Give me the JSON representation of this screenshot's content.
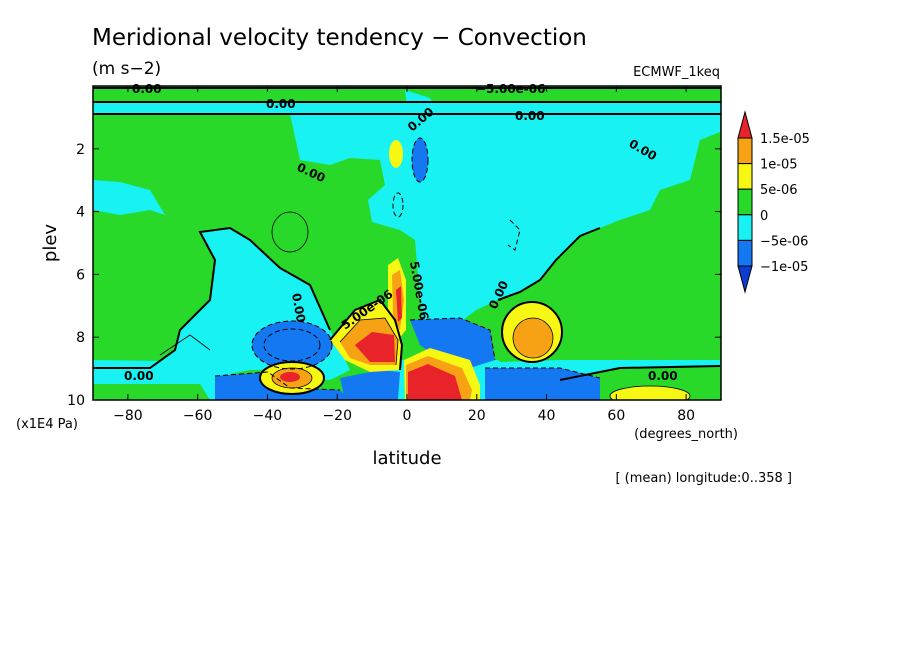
{
  "chart_data": {
    "type": "contour",
    "title": "Meridional velocity tendency − Convection",
    "units": "(m s−2)",
    "source": "ECMWF_1keq",
    "xlabel": "latitude",
    "x_units": "(degrees_north)",
    "ylabel": "plev",
    "y_units": "(x1E4 Pa)",
    "footnote": "[ (mean) longitude:0..358 ]",
    "xlim": [
      -90,
      90
    ],
    "ylim": [
      10,
      0
    ],
    "x_ticks": [
      -80,
      -60,
      -40,
      -20,
      0,
      20,
      40,
      60,
      80
    ],
    "x_tick_labels": [
      "−80",
      "−60",
      "−40",
      "−20",
      "0",
      "20",
      "40",
      "60",
      "80"
    ],
    "y_ticks": [
      2,
      4,
      6,
      8,
      10
    ],
    "y_tick_labels": [
      "2",
      "4",
      "6",
      "8",
      "10"
    ],
    "colorbar": {
      "levels": [
        "1.5e-05",
        "1e-05",
        "5e-06",
        "0",
        "−5e-06",
        "−1e-05"
      ],
      "colors": [
        "#e8242a",
        "#f7a214",
        "#f7f714",
        "#28d92a",
        "#18f2f2",
        "#1478f2",
        "#0c3cd2"
      ]
    },
    "contour_labels": [
      "0.00",
      "0.00",
      "0.00",
      "0.00",
      "0.00",
      "0.00",
      "0.00",
      "0.00",
      "0.00",
      "0.00",
      "−5.00e-06",
      "5.00e-06",
      "5.00e-06"
    ],
    "features": [
      {
        "lat": -35,
        "plev": 9.2,
        "sign": "positive",
        "level": "1.5e-05"
      },
      {
        "lat": -10,
        "plev": 8.3,
        "sign": "positive",
        "level": "1.5e-05"
      },
      {
        "lat": -3,
        "plev": 6.2,
        "sign": "positive",
        "level": "1.5e-05"
      },
      {
        "lat": 10,
        "plev": 9.3,
        "sign": "positive",
        "level": "1.5e-05"
      },
      {
        "lat": 35,
        "plev": 8.1,
        "sign": "positive",
        "level": "1e-05"
      },
      {
        "lat": 68,
        "plev": 9.8,
        "sign": "positive",
        "level": "5e-06"
      },
      {
        "lat": -3,
        "plev": 2.2,
        "sign": "positive",
        "level": "5e-06"
      },
      {
        "lat": -45,
        "plev": 9.6,
        "sign": "negative",
        "level": "−1e-05"
      },
      {
        "lat": -33,
        "plev": 8.3,
        "sign": "negative",
        "level": "−1e-05"
      },
      {
        "lat": 12,
        "plev": 8.2,
        "sign": "negative",
        "level": "−1e-05"
      },
      {
        "lat": 40,
        "plev": 9.6,
        "sign": "negative",
        "level": "−1e-05"
      },
      {
        "lat": -3,
        "plev": 9.4,
        "sign": "negative",
        "level": "−1e-05"
      }
    ]
  }
}
